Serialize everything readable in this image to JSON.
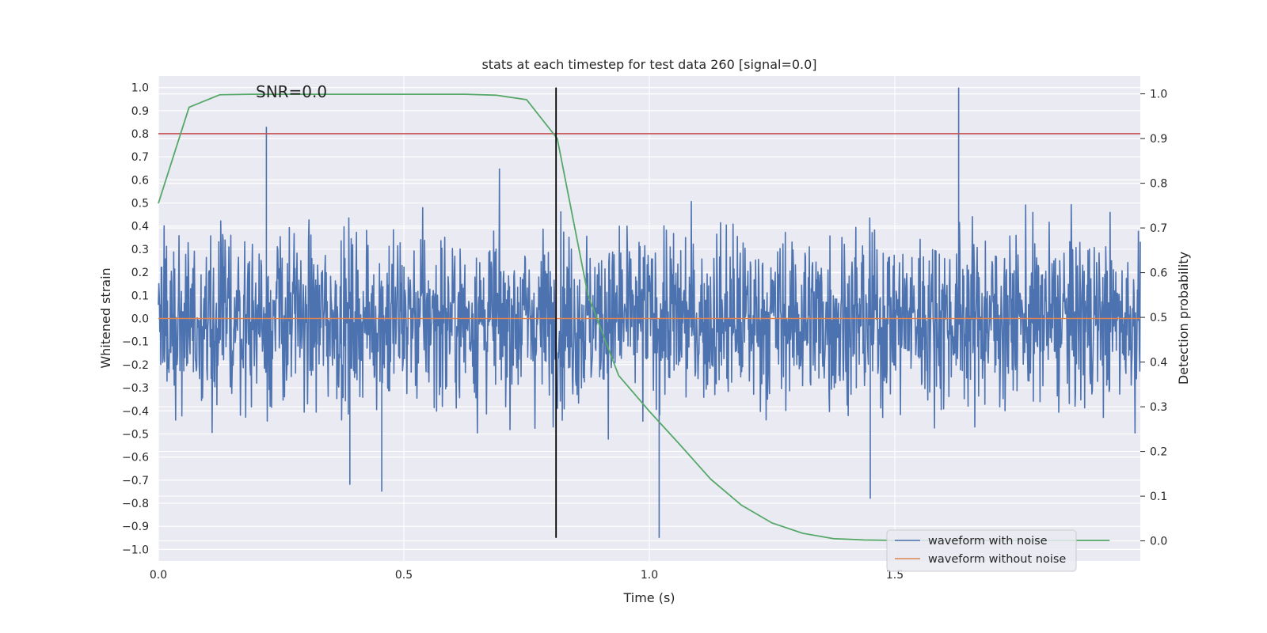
{
  "chart_data": {
    "type": "line",
    "title": "stats at each timestep for test data 260 [signal=0.0]",
    "xlabel": "Time (s)",
    "ylabel": "Whitened strain",
    "y2label": "Detection probability",
    "annotation": "SNR=0.0",
    "xlim": [
      0.0,
      2.0
    ],
    "ylim": [
      -1.05,
      1.05
    ],
    "y2lim": [
      -0.045,
      1.04
    ],
    "x_ticks": [
      0.0,
      0.5,
      1.0,
      1.5
    ],
    "x_tick_labels": [
      "0.0",
      "0.5",
      "1.0",
      "1.5"
    ],
    "y_ticks": [
      1.0,
      0.9,
      0.8,
      0.7,
      0.6,
      0.5,
      0.4,
      0.3,
      0.2,
      0.1,
      0.0,
      -0.1,
      -0.2,
      -0.3,
      -0.4,
      -0.5,
      -0.6,
      -0.7,
      -0.8,
      -0.9,
      -1.0
    ],
    "y_tick_labels": [
      "1.0",
      "0.9",
      "0.8",
      "0.7",
      "0.6",
      "0.5",
      "0.4",
      "0.3",
      "0.2",
      "0.1",
      "0.0",
      "−0.1",
      "−0.2",
      "−0.3",
      "−0.4",
      "−0.5",
      "−0.6",
      "−0.7",
      "−0.8",
      "−0.9",
      "−1.0"
    ],
    "y2_ticks": [
      1.0,
      0.9,
      0.8,
      0.7,
      0.6,
      0.5,
      0.4,
      0.3,
      0.2,
      0.1,
      0.0
    ],
    "y2_tick_labels": [
      "1.0",
      "0.9",
      "0.8",
      "0.7",
      "0.6",
      "0.5",
      "0.4",
      "0.3",
      "0.2",
      "0.1",
      "0.0"
    ],
    "threshold_y": 0.8,
    "marker_x": 0.81,
    "marker_y_range": [
      -0.95,
      1.0
    ],
    "series": [
      {
        "name": "waveform with noise",
        "color": "#4c72b0",
        "noise_samples": 2048,
        "approx_peak_range": [
          -0.95,
          1.0
        ]
      },
      {
        "name": "waveform without noise",
        "color": "#dd8452",
        "x": [
          0.0,
          2.0
        ],
        "y": [
          0.0,
          0.0
        ]
      },
      {
        "name": "detection probability",
        "color": "#55a868",
        "x": [
          0.0,
          0.0625,
          0.125,
          0.1875,
          0.25,
          0.3125,
          0.375,
          0.4375,
          0.5,
          0.5625,
          0.625,
          0.6875,
          0.75,
          0.8125,
          0.875,
          0.9375,
          1.0,
          1.0625,
          1.125,
          1.1875,
          1.25,
          1.3125,
          1.375,
          1.4375,
          1.5,
          1.5625,
          1.625,
          1.6875,
          1.75,
          1.8125,
          1.875,
          1.9375
        ],
        "y": [
          0.755,
          0.97,
          0.998,
          0.999,
          0.999,
          0.999,
          0.999,
          0.999,
          0.999,
          0.999,
          0.999,
          0.997,
          0.987,
          0.9,
          0.55,
          0.37,
          0.29,
          0.215,
          0.138,
          0.08,
          0.04,
          0.017,
          0.005,
          0.002,
          0.001,
          0.001,
          0.001,
          0.001,
          0.001,
          0.001,
          0.001,
          0.001
        ]
      }
    ],
    "legend": {
      "position": "lower-right",
      "entries": [
        {
          "label": "waveform with noise",
          "color": "#4c72b0"
        },
        {
          "label": "waveform without noise",
          "color": "#dd8452"
        }
      ]
    },
    "colors": {
      "plot_bg": "#eaeaf2",
      "grid": "#ffffff",
      "threshold": "#c44e52",
      "marker": "#000000"
    }
  }
}
